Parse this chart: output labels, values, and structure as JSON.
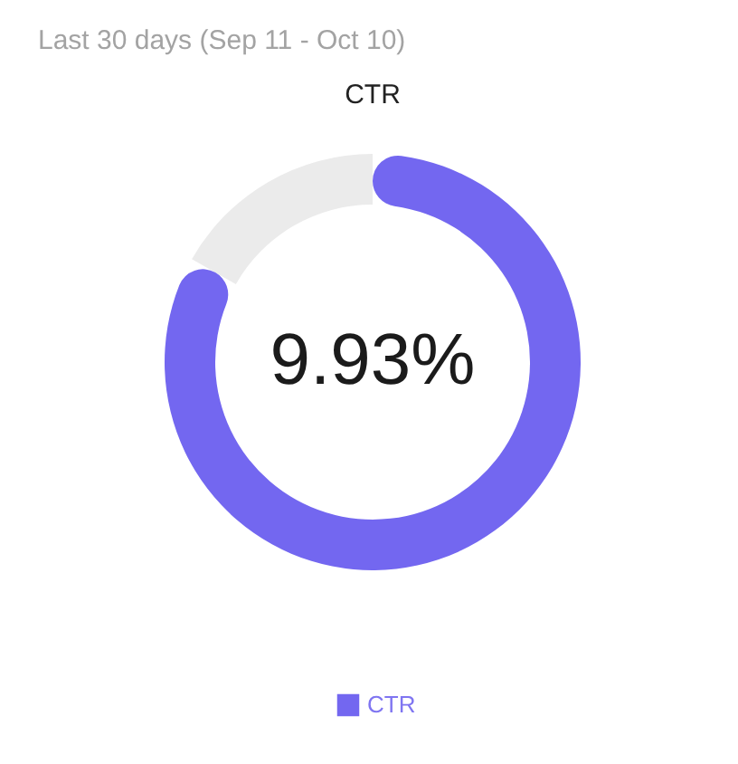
{
  "chart_data": {
    "type": "donut",
    "title": "CTR",
    "subtitle": "Last 30 days (Sep 11 - Oct 10)",
    "categories": [
      "CTR",
      null
    ],
    "values": [
      9.93,
      2.0
    ],
    "colors": [
      "#7367f0",
      "#ebebeb"
    ],
    "value_labels": [
      "9.93%",
      null
    ],
    "legend": "bottom"
  }
}
